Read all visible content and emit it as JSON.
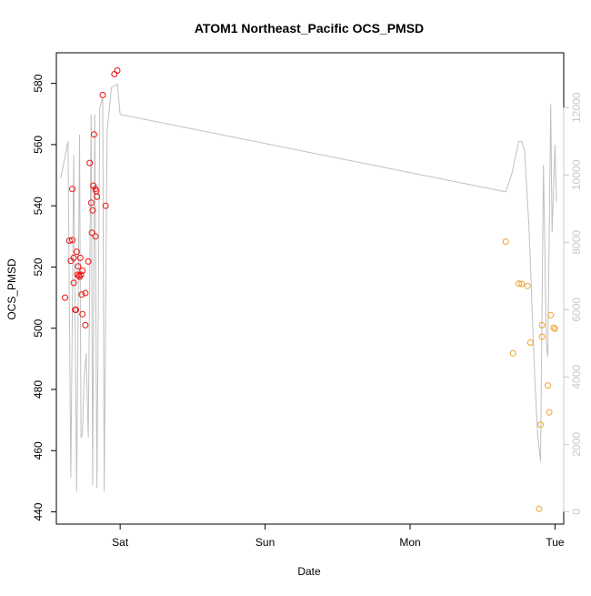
{
  "chart_data": {
    "type": "scatter",
    "title": "ATOM1 Northeast_Pacific OCS_PMSD",
    "xlabel": "Date",
    "ylabel": "OCS_PMSD",
    "x_unit": "days (0 = Sat 00:00)",
    "xlim": [
      -0.44,
      3.06
    ],
    "ylim": [
      436,
      590
    ],
    "y2lim": [
      -370,
      13630
    ],
    "x_ticks": [
      {
        "value": 0,
        "label": "Sat"
      },
      {
        "value": 1,
        "label": "Sun"
      },
      {
        "value": 2,
        "label": "Mon"
      },
      {
        "value": 3,
        "label": "Tue"
      }
    ],
    "y_ticks": [
      440,
      460,
      480,
      500,
      520,
      540,
      560,
      580
    ],
    "y2_ticks": [
      0,
      2000,
      4000,
      6000,
      8000,
      10000,
      12000
    ],
    "grid": false,
    "colors": {
      "series_1": "#ee1111",
      "series_2": "#f0a030",
      "line": "#c0c0c0",
      "right_axis": "#c8c8c8",
      "axis": "#000000"
    },
    "series": [
      {
        "color": "#ee1111",
        "points": [
          [
            -0.38,
            510
          ],
          [
            -0.35,
            528.6
          ],
          [
            -0.34,
            522
          ],
          [
            -0.33,
            528.8
          ],
          [
            -0.33,
            545.5
          ],
          [
            -0.32,
            514.8
          ],
          [
            -0.32,
            523
          ],
          [
            -0.31,
            506
          ],
          [
            -0.305,
            506
          ],
          [
            -0.3,
            525
          ],
          [
            -0.29,
            520.2
          ],
          [
            -0.295,
            517.5
          ],
          [
            -0.285,
            517.2
          ],
          [
            -0.28,
            516.8
          ],
          [
            -0.275,
            523
          ],
          [
            -0.27,
            517.5
          ],
          [
            -0.265,
            511
          ],
          [
            -0.26,
            518.8
          ],
          [
            -0.26,
            504.6
          ],
          [
            -0.24,
            501
          ],
          [
            -0.24,
            511.5
          ],
          [
            -0.22,
            521.8
          ],
          [
            -0.21,
            554
          ],
          [
            -0.2,
            541
          ],
          [
            -0.195,
            531.2
          ],
          [
            -0.19,
            538.5
          ],
          [
            -0.185,
            546.6
          ],
          [
            -0.18,
            563.3
          ],
          [
            -0.17,
            545.5
          ],
          [
            -0.165,
            544.8
          ],
          [
            -0.16,
            543
          ],
          [
            -0.17,
            530
          ],
          [
            -0.12,
            576.2
          ],
          [
            -0.1,
            540
          ],
          [
            -0.04,
            583
          ],
          [
            -0.02,
            584.2
          ]
        ]
      },
      {
        "color": "#f0a030",
        "points": [
          [
            2.66,
            528.3
          ],
          [
            2.71,
            491.8
          ],
          [
            2.75,
            514.6
          ],
          [
            2.77,
            514.5
          ],
          [
            2.81,
            513.8
          ],
          [
            2.83,
            495.3
          ],
          [
            2.89,
            441
          ],
          [
            2.9,
            468.5
          ],
          [
            2.91,
            501
          ],
          [
            2.91,
            497.2
          ],
          [
            2.95,
            481.3
          ],
          [
            2.96,
            472.5
          ],
          [
            2.97,
            504.3
          ],
          [
            2.99,
            500.2
          ],
          [
            3.0,
            499.8
          ]
        ]
      }
    ],
    "line_series": {
      "axis": "right",
      "color": "#c0c0c0",
      "points": [
        [
          -0.41,
          9900
        ],
        [
          -0.36,
          11000
        ],
        [
          -0.34,
          1000
        ],
        [
          -0.32,
          10600
        ],
        [
          -0.3,
          600
        ],
        [
          -0.28,
          11200
        ],
        [
          -0.27,
          2200
        ],
        [
          -0.26,
          2300
        ],
        [
          -0.25,
          3900
        ],
        [
          -0.235,
          4700
        ],
        [
          -0.22,
          2200
        ],
        [
          -0.2,
          11800
        ],
        [
          -0.19,
          800
        ],
        [
          -0.175,
          11800
        ],
        [
          -0.16,
          700
        ],
        [
          -0.14,
          12000
        ],
        [
          -0.12,
          12300
        ],
        [
          -0.11,
          600
        ],
        [
          -0.09,
          11300
        ],
        [
          -0.06,
          12600
        ],
        [
          -0.02,
          12700
        ],
        [
          0.0,
          11800
        ],
        [
          2.66,
          9500
        ],
        [
          2.7,
          10000
        ],
        [
          2.75,
          11000
        ],
        [
          2.77,
          11000
        ],
        [
          2.79,
          10700
        ],
        [
          2.82,
          8500
        ],
        [
          2.86,
          4000
        ],
        [
          2.88,
          2300
        ],
        [
          2.9,
          1500
        ],
        [
          2.92,
          10300
        ],
        [
          2.94,
          5000
        ],
        [
          2.95,
          4600
        ],
        [
          2.97,
          12100
        ],
        [
          2.98,
          8300
        ],
        [
          3.0,
          10900
        ],
        [
          3.01,
          9200
        ]
      ]
    }
  }
}
